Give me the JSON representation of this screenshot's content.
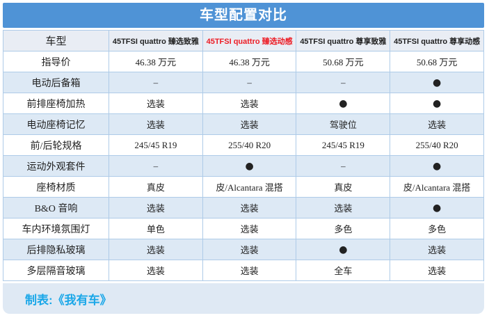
{
  "colors": {
    "header_bg": "#4f93d6",
    "header_text": "#ffffff",
    "colhead_bg": "#e9edf4",
    "highlight_text": "#ed1c24",
    "stripe_bg": "#dde9f5",
    "border": "#aecbe8",
    "footer_bg": "#dfe9f4",
    "footer_text": "#1aa7e8",
    "body_text": "#222222"
  },
  "chart_data": {
    "type": "table",
    "title": "车型配置对比",
    "footer_credit": "制表:《我有车》",
    "highlight_column": 2,
    "columns": [
      "车型",
      "45TFSI quattro 臻选致雅",
      "45TFSI quattro 臻选动感",
      "45TFSI quattro 尊享致雅",
      "45TFSI quattro 尊享动感"
    ],
    "rows": [
      {
        "label": "指导价",
        "values": [
          "46.38 万元",
          "46.38 万元",
          "50.68 万元",
          "50.68 万元"
        ]
      },
      {
        "label": "电动后备箱",
        "values": [
          "–",
          "–",
          "–",
          "●"
        ]
      },
      {
        "label": "前排座椅加热",
        "values": [
          "选装",
          "选装",
          "●",
          "●"
        ]
      },
      {
        "label": "电动座椅记忆",
        "values": [
          "选装",
          "选装",
          "驾驶位",
          "选装"
        ]
      },
      {
        "label": "前/后轮规格",
        "values": [
          "245/45 R19",
          "255/40 R20",
          "245/45 R19",
          "255/40 R20"
        ]
      },
      {
        "label": "运动外观套件",
        "values": [
          "–",
          "●",
          "–",
          "●"
        ]
      },
      {
        "label": "座椅材质",
        "values": [
          "真皮",
          "皮/Alcantara 混搭",
          "真皮",
          "皮/Alcantara 混搭"
        ]
      },
      {
        "label": "B&O 音响",
        "values": [
          "选装",
          "选装",
          "选装",
          "●"
        ]
      },
      {
        "label": "车内环境氛围灯",
        "values": [
          "单色",
          "选装",
          "多色",
          "多色"
        ]
      },
      {
        "label": "后排隐私玻璃",
        "values": [
          "选装",
          "选装",
          "●",
          "选装"
        ]
      },
      {
        "label": "多层隔音玻璃",
        "values": [
          "选装",
          "选装",
          "全车",
          "选装"
        ]
      }
    ]
  }
}
